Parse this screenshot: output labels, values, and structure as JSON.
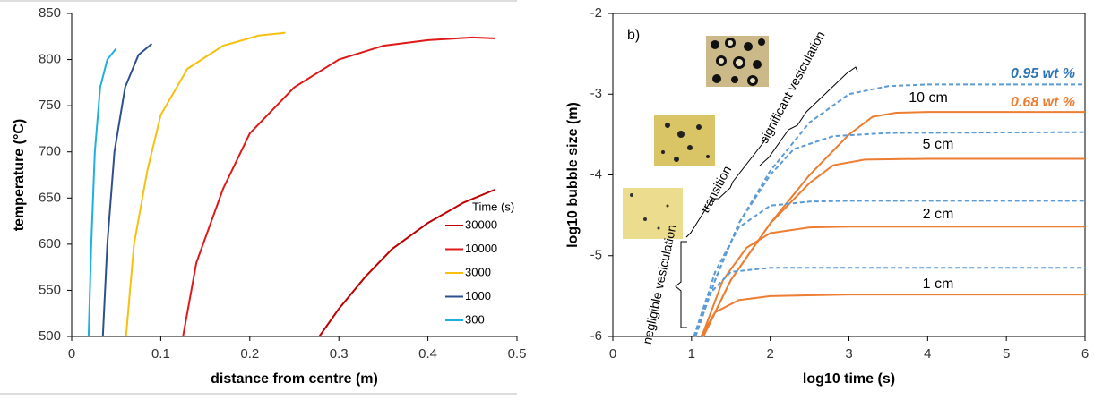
{
  "chart_data": [
    {
      "type": "line",
      "xlabel": "distance from centre (m)",
      "ylabel": "temperature (°C)",
      "xlim": [
        0,
        0.5
      ],
      "xticks": [
        0,
        0.1,
        0.2,
        0.3,
        0.4,
        0.5
      ],
      "ylim": [
        500,
        850
      ],
      "yticks": [
        500,
        550,
        600,
        650,
        700,
        750,
        800,
        850
      ],
      "legend_title": "Time (s)",
      "legend": "right",
      "series": [
        {
          "name": "30000",
          "color": "#c00000",
          "style": "solid",
          "x": [
            0.278,
            0.3,
            0.33,
            0.36,
            0.4,
            0.44,
            0.475
          ],
          "values": [
            500,
            530,
            565,
            595,
            623,
            645,
            659
          ]
        },
        {
          "name": "10000",
          "color": "#e01818",
          "style": "solid",
          "x": [
            0.125,
            0.14,
            0.17,
            0.2,
            0.25,
            0.3,
            0.35,
            0.4,
            0.45,
            0.475
          ],
          "values": [
            500,
            580,
            660,
            720,
            770,
            800,
            815,
            821,
            824,
            823
          ]
        },
        {
          "name": "3000",
          "color": "#f5c010",
          "style": "solid",
          "x": [
            0.061,
            0.07,
            0.085,
            0.1,
            0.13,
            0.17,
            0.21,
            0.24
          ],
          "values": [
            500,
            600,
            680,
            740,
            790,
            815,
            826,
            829
          ]
        },
        {
          "name": "1000",
          "color": "#2f4f8f",
          "style": "solid",
          "x": [
            0.035,
            0.04,
            0.048,
            0.06,
            0.075,
            0.09
          ],
          "values": [
            500,
            600,
            700,
            770,
            805,
            817
          ]
        },
        {
          "name": "300",
          "color": "#1fb0e0",
          "style": "solid",
          "x": [
            0.019,
            0.022,
            0.026,
            0.032,
            0.04,
            0.05
          ],
          "values": [
            500,
            600,
            700,
            770,
            800,
            812
          ]
        }
      ]
    },
    {
      "type": "line",
      "xlabel": "log10 time (s)",
      "ylabel": "log10 bubble size (m)",
      "xlim": [
        0,
        6
      ],
      "xticks": [
        0,
        1,
        2,
        3,
        4,
        5,
        6
      ],
      "ylim": [
        -6,
        -2
      ],
      "yticks": [
        -6,
        -5,
        -4,
        -3,
        -2
      ],
      "annotations": [
        "b)",
        "0.95 wt %",
        "0.68 wt %",
        "10 cm",
        "5 cm",
        "2 cm",
        "1 cm",
        "significant vesiculation",
        "transition",
        "negligible vesiculation"
      ],
      "series": [
        {
          "color": "#ed7d31",
          "style": "solid",
          "x": [
            1.15,
            1.5,
            2,
            2.5,
            3,
            3.3,
            3.6,
            4,
            6
          ],
          "values": [
            -6,
            -5.3,
            -4.6,
            -4,
            -3.5,
            -3.28,
            -3.23,
            -3.22,
            -3.22
          ]
        },
        {
          "color": "#ed7d31",
          "style": "solid",
          "x": [
            1.15,
            1.5,
            2,
            2.5,
            2.8,
            3.2,
            4,
            6
          ],
          "values": [
            -6,
            -5.3,
            -4.6,
            -4.1,
            -3.88,
            -3.81,
            -3.8,
            -3.8
          ]
        },
        {
          "color": "#ed7d31",
          "style": "solid",
          "x": [
            1.13,
            1.4,
            1.7,
            2,
            2.5,
            3,
            6
          ],
          "values": [
            -6,
            -5.3,
            -4.9,
            -4.72,
            -4.65,
            -4.64,
            -4.64
          ]
        },
        {
          "color": "#ed7d31",
          "style": "solid",
          "x": [
            1.12,
            1.3,
            1.6,
            2,
            3,
            6
          ],
          "values": [
            -6,
            -5.7,
            -5.55,
            -5.5,
            -5.48,
            -5.48
          ]
        },
        {
          "color": "#5b9bd5",
          "style": "dashed",
          "x": [
            1.05,
            1.3,
            1.6,
            2,
            2.5,
            3,
            3.5,
            4,
            6
          ],
          "values": [
            -6,
            -5.3,
            -4.6,
            -3.95,
            -3.35,
            -3,
            -2.9,
            -2.88,
            -2.88
          ]
        },
        {
          "color": "#5b9bd5",
          "style": "dashed",
          "x": [
            1.05,
            1.3,
            1.6,
            2,
            2.3,
            2.8,
            3.5,
            6
          ],
          "values": [
            -6,
            -5.3,
            -4.6,
            -4,
            -3.68,
            -3.52,
            -3.48,
            -3.47
          ]
        },
        {
          "color": "#5b9bd5",
          "style": "dashed",
          "x": [
            1.04,
            1.3,
            1.6,
            2,
            2.5,
            3,
            6
          ],
          "values": [
            -6,
            -5.2,
            -4.65,
            -4.38,
            -4.33,
            -4.32,
            -4.32
          ]
        },
        {
          "color": "#5b9bd5",
          "style": "dashed",
          "x": [
            1.03,
            1.2,
            1.5,
            2,
            3,
            6
          ],
          "values": [
            -6,
            -5.5,
            -5.2,
            -5.15,
            -5.15,
            -5.15
          ]
        }
      ]
    }
  ]
}
